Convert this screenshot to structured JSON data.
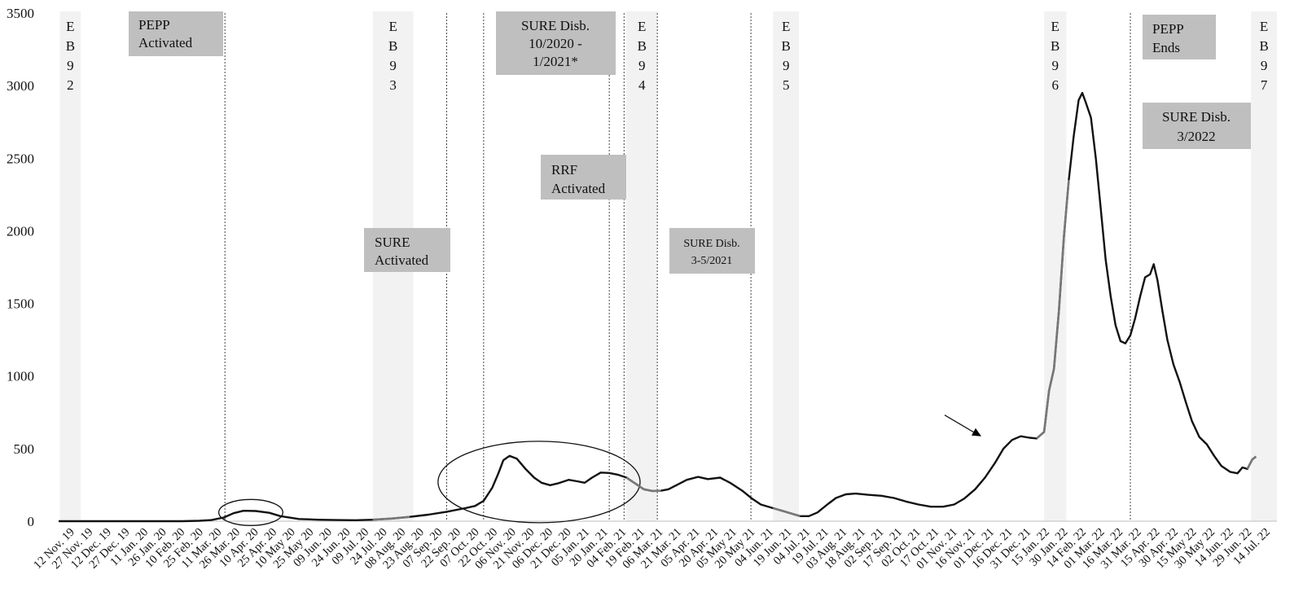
{
  "chart_data": {
    "type": "line",
    "title": "",
    "xlabel": "",
    "ylabel": "",
    "ylim": [
      0,
      3500
    ],
    "yticks": [
      0,
      500,
      1000,
      1500,
      2000,
      2500,
      3000,
      3500
    ],
    "xlim": [
      "2019-11-12",
      "2022-07-28"
    ],
    "x_tick_labels": [
      "12 Nov. 19",
      "27 Nov. 19",
      "12 Dec. 19",
      "27 Dec. 19",
      "11 Jan. 20",
      "26 Jan. 20",
      "10 Feb. 20",
      "25 Feb. 20",
      "11 Mar. 20",
      "26 Mar. 20",
      "10 Apr. 20",
      "25 Apr. 20",
      "10 May 20",
      "25 May 20",
      "09 Jun. 20",
      "24 Jun. 20",
      "09 Jul. 20",
      "24 Jul. 20",
      "08 Aug. 20",
      "23 Aug. 20",
      "07 Sep. 20",
      "22 Sep. 20",
      "07 Oct. 20",
      "22 Oct. 20",
      "06 Nov. 20",
      "21 Nov. 20",
      "06 Dec. 20",
      "21 Dec. 20",
      "05 Jan. 21",
      "20 Jan. 21",
      "04 Feb. 21",
      "19 Feb. 21",
      "06 Mar. 21",
      "21 Mar. 21",
      "05 Apr. 21",
      "20 Apr. 21",
      "05 May 21",
      "20 May 21",
      "04 Jun. 21",
      "19 Jun. 21",
      "04 Jul. 21",
      "19 Jul. 21",
      "03 Aug. 21",
      "18 Aug. 21",
      "02 Sep. 21",
      "17 Sep. 21",
      "02 Oct. 21",
      "17 Oct. 21",
      "01 Nov. 21",
      "16 Nov. 21",
      "01 Dec. 21",
      "16 Dec. 21",
      "31 Dec. 21",
      "15 Jan. 22",
      "30 Jan. 22",
      "14 Feb. 22",
      "01 Mar. 22",
      "16 Mar. 22",
      "31 Mar. 22",
      "15 Apr. 22",
      "30 Apr. 22",
      "15 May 22",
      "30 May 22",
      "14 Jun. 22",
      "29 Jun. 22",
      "14 Jul. 22"
    ],
    "grid": false,
    "legend": "none",
    "series": [
      {
        "color": "#111111",
        "points": [
          [
            "2019-11-12",
            0
          ],
          [
            "2020-02-20",
            0
          ],
          [
            "2020-03-05",
            3
          ],
          [
            "2020-03-15",
            8
          ],
          [
            "2020-03-25",
            25
          ],
          [
            "2020-04-02",
            55
          ],
          [
            "2020-04-10",
            72
          ],
          [
            "2020-04-20",
            70
          ],
          [
            "2020-05-01",
            58
          ],
          [
            "2020-05-10",
            35
          ],
          [
            "2020-05-25",
            15
          ],
          [
            "2020-06-10",
            10
          ],
          [
            "2020-06-25",
            8
          ],
          [
            "2020-07-10",
            7
          ],
          [
            "2020-07-24",
            10
          ],
          [
            "2020-08-08",
            18
          ],
          [
            "2020-08-23",
            30
          ],
          [
            "2020-09-07",
            45
          ],
          [
            "2020-09-22",
            65
          ],
          [
            "2020-10-07",
            90
          ],
          [
            "2020-10-15",
            105
          ],
          [
            "2020-10-22",
            140
          ],
          [
            "2020-10-29",
            230
          ],
          [
            "2020-11-03",
            330
          ],
          [
            "2020-11-07",
            420
          ],
          [
            "2020-11-12",
            450
          ],
          [
            "2020-11-18",
            430
          ],
          [
            "2020-11-25",
            360
          ],
          [
            "2020-12-02",
            300
          ],
          [
            "2020-12-08",
            265
          ],
          [
            "2020-12-15",
            248
          ],
          [
            "2020-12-22",
            262
          ],
          [
            "2020-12-30",
            285
          ],
          [
            "2021-01-06",
            275
          ],
          [
            "2021-01-12",
            265
          ],
          [
            "2021-01-18",
            300
          ],
          [
            "2021-01-25",
            335
          ],
          [
            "2021-02-01",
            332
          ],
          [
            "2021-02-08",
            320
          ],
          [
            "2021-02-15",
            300
          ],
          [
            "2021-02-22",
            260
          ],
          [
            "2021-03-01",
            220
          ],
          [
            "2021-03-08",
            208
          ],
          [
            "2021-03-15",
            210
          ],
          [
            "2021-03-21",
            220
          ],
          [
            "2021-03-28",
            250
          ],
          [
            "2021-04-05",
            285
          ],
          [
            "2021-04-14",
            305
          ],
          [
            "2021-04-22",
            290
          ],
          [
            "2021-05-02",
            300
          ],
          [
            "2021-05-10",
            265
          ],
          [
            "2021-05-20",
            210
          ],
          [
            "2021-05-28",
            155
          ],
          [
            "2021-06-04",
            115
          ],
          [
            "2021-06-14",
            90
          ],
          [
            "2021-06-22",
            70
          ],
          [
            "2021-06-30",
            50
          ],
          [
            "2021-07-06",
            35
          ],
          [
            "2021-07-13",
            35
          ],
          [
            "2021-07-20",
            60
          ],
          [
            "2021-07-28",
            115
          ],
          [
            "2021-08-04",
            160
          ],
          [
            "2021-08-12",
            185
          ],
          [
            "2021-08-20",
            190
          ],
          [
            "2021-08-30",
            182
          ],
          [
            "2021-09-10",
            175
          ],
          [
            "2021-09-20",
            160
          ],
          [
            "2021-09-30",
            135
          ],
          [
            "2021-10-10",
            115
          ],
          [
            "2021-10-20",
            100
          ],
          [
            "2021-10-30",
            100
          ],
          [
            "2021-11-08",
            115
          ],
          [
            "2021-11-16",
            155
          ],
          [
            "2021-11-25",
            220
          ],
          [
            "2021-12-03",
            300
          ],
          [
            "2021-12-11",
            400
          ],
          [
            "2021-12-18",
            500
          ],
          [
            "2021-12-25",
            560
          ],
          [
            "2022-01-01",
            585
          ],
          [
            "2022-01-08",
            575
          ],
          [
            "2022-01-14",
            570
          ],
          [
            "2022-01-20",
            615
          ],
          [
            "2022-01-24",
            900
          ],
          [
            "2022-01-28",
            1050
          ],
          [
            "2022-02-01",
            1450
          ],
          [
            "2022-02-05",
            1950
          ],
          [
            "2022-02-09",
            2350
          ],
          [
            "2022-02-13",
            2650
          ],
          [
            "2022-02-17",
            2900
          ],
          [
            "2022-02-20",
            2950
          ],
          [
            "2022-02-23",
            2880
          ],
          [
            "2022-02-27",
            2780
          ],
          [
            "2022-03-03",
            2500
          ],
          [
            "2022-03-07",
            2150
          ],
          [
            "2022-03-11",
            1800
          ],
          [
            "2022-03-15",
            1550
          ],
          [
            "2022-03-19",
            1350
          ],
          [
            "2022-03-23",
            1240
          ],
          [
            "2022-03-27",
            1225
          ],
          [
            "2022-03-31",
            1280
          ],
          [
            "2022-04-04",
            1400
          ],
          [
            "2022-04-08",
            1550
          ],
          [
            "2022-04-12",
            1680
          ],
          [
            "2022-04-16",
            1700
          ],
          [
            "2022-04-19",
            1770
          ],
          [
            "2022-04-22",
            1660
          ],
          [
            "2022-04-26",
            1450
          ],
          [
            "2022-04-30",
            1250
          ],
          [
            "2022-05-05",
            1080
          ],
          [
            "2022-05-10",
            960
          ],
          [
            "2022-05-15",
            820
          ],
          [
            "2022-05-20",
            690
          ],
          [
            "2022-05-26",
            580
          ],
          [
            "2022-06-01",
            530
          ],
          [
            "2022-06-07",
            450
          ],
          [
            "2022-06-13",
            380
          ],
          [
            "2022-06-20",
            340
          ],
          [
            "2022-06-26",
            330
          ],
          [
            "2022-06-30",
            370
          ],
          [
            "2022-07-04",
            360
          ],
          [
            "2022-07-08",
            425
          ],
          [
            "2022-07-11",
            445
          ]
        ]
      }
    ],
    "eb_periods": [
      {
        "label": "EB92",
        "start": "2019-11-13",
        "end": "2019-11-30"
      },
      {
        "label": "EB93",
        "start": "2020-07-24",
        "end": "2020-08-26"
      },
      {
        "label": "EB94",
        "start": "2021-02-15",
        "end": "2021-03-12"
      },
      {
        "label": "EB95",
        "start": "2021-06-14",
        "end": "2021-07-05"
      },
      {
        "label": "EB96",
        "start": "2022-01-20",
        "end": "2022-02-07"
      },
      {
        "label": "EB97",
        "start": "2022-07-07",
        "end": "2022-07-28"
      }
    ],
    "event_lines": [
      {
        "date": "2020-03-26"
      },
      {
        "date": "2020-09-22"
      },
      {
        "date": "2020-10-22"
      },
      {
        "date": "2021-02-01"
      },
      {
        "date": "2021-02-13"
      },
      {
        "date": "2021-03-12"
      },
      {
        "date": "2021-05-27"
      },
      {
        "date": "2022-03-31"
      }
    ],
    "annotations": [
      {
        "text": "PEPP\nActivated"
      },
      {
        "text": "SURE\nActivated"
      },
      {
        "text": "SURE Disb.\n10/2020 -\n1/2021*"
      },
      {
        "text": "RRF\nActivated"
      },
      {
        "text": "SURE Disb.\n3-5/2021"
      },
      {
        "text": "PEPP\nEnds"
      },
      {
        "text": "SURE Disb.\n3/2022"
      }
    ]
  }
}
